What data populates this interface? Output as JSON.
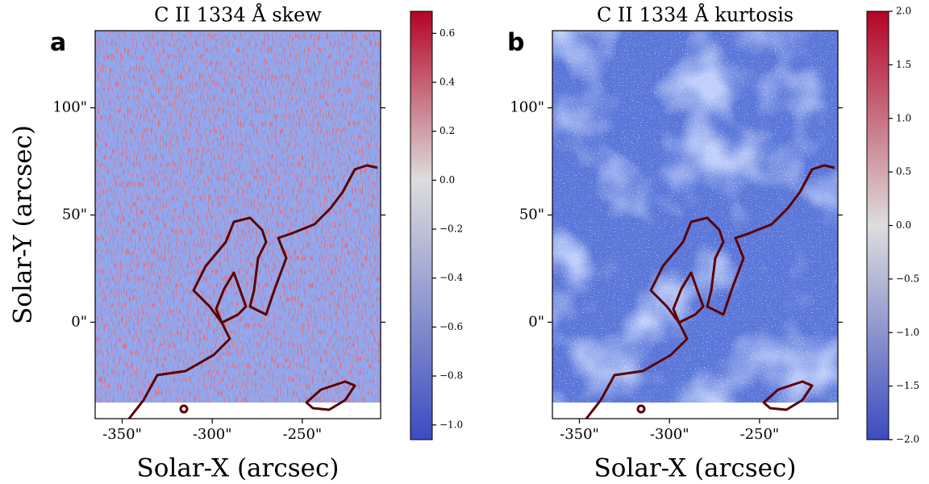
{
  "chart_data": [
    {
      "type": "image",
      "panel_label": "a",
      "title": "C II 1334 Å skew",
      "xlabel": "Solar-X (arcsec)",
      "ylabel": "Solar-Y (arcsec)",
      "xlim": [
        -365,
        -206.5
      ],
      "ylim": [
        -45,
        136
      ],
      "xticks": [
        {
          "value": -350,
          "label": "-350\""
        },
        {
          "value": -300,
          "label": "-300\""
        },
        {
          "value": -250,
          "label": "-250\""
        }
      ],
      "yticks": [
        {
          "value": 0,
          "label": "0\""
        },
        {
          "value": 50,
          "label": "50\""
        },
        {
          "value": 100,
          "label": "100\""
        }
      ],
      "clim": [
        -1.06,
        0.69
      ],
      "cmap": [
        "#3b4cc0",
        "#dddddd",
        "#b40426"
      ],
      "cticks": [
        {
          "value": -1.0,
          "label": "−1.0"
        },
        {
          "value": -0.8,
          "label": "−0.8"
        },
        {
          "value": -0.6,
          "label": "−0.6"
        },
        {
          "value": -0.4,
          "label": "−0.4"
        },
        {
          "value": -0.2,
          "label": "−0.2"
        },
        {
          "value": 0,
          "label": "0.0"
        },
        0.2,
        0.4,
        0.6
      ]
    },
    {
      "type": "image",
      "panel_label": "b",
      "title": "C II 1334 Å kurtosis",
      "xlabel": "Solar-X (arcsec)",
      "xlim": [
        -365,
        -206.5
      ],
      "ylim": [
        -45,
        136
      ],
      "xticks": [
        {
          "value": -350,
          "label": "-350\""
        },
        {
          "value": -300,
          "label": "-300\""
        },
        {
          "value": -250,
          "label": "-250\""
        }
      ],
      "yticks": [
        {
          "value": 0,
          "label": "0\""
        },
        {
          "value": 50,
          "label": "50\""
        },
        {
          "value": 100,
          "label": "100\""
        }
      ],
      "clim": [
        -2,
        2
      ],
      "cmap": [
        "#3b4cc0",
        "#dddddd",
        "#b40426"
      ],
      "cticks": [
        {
          "value": -2,
          "label": "−2.0"
        },
        {
          "value": -1.5,
          "label": "−1.5"
        },
        {
          "value": -1,
          "label": "−1.0"
        },
        {
          "value": -0.5,
          "label": "−0.5"
        },
        {
          "value": 0,
          "label": "0.0"
        },
        0.5,
        {
          "value": 1,
          "label": "1.0"
        },
        1.5,
        {
          "value": 2,
          "label": "2.0"
        }
      ]
    }
  ]
}
